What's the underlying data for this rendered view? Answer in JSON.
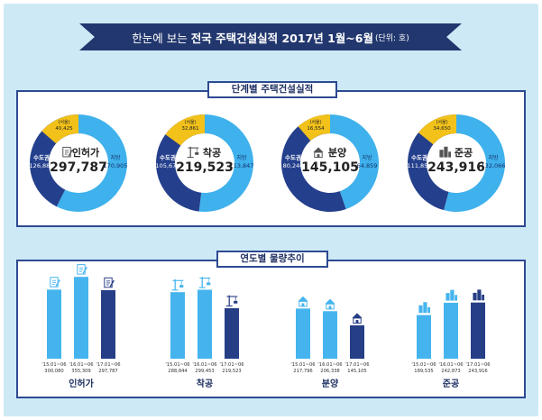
{
  "title": {
    "prefix": "한눈에 보는",
    "main": "전국 주택건설실적 2017년 1월~6월",
    "unit": "(단위: 호)"
  },
  "panels": {
    "top_label": "단계별 주택건설실적",
    "bottom_label": "연도별 물량추이"
  },
  "colors": {
    "metro": "#243f8c",
    "local": "#3fb1ec",
    "seoul": "#f2c21a",
    "bar_dark": "#263e86",
    "bar_light": "#45b4ee"
  },
  "chart_data": [
    {
      "type": "pie",
      "title": "단계별 주택건설실적",
      "donuts": [
        {
          "name": "인허가",
          "total": "297,787",
          "icon": "permit-document-icon",
          "segments": [
            {
              "name": "수도권",
              "value": 126882,
              "label": "126,882"
            },
            {
              "name": "지방",
              "value": 170905,
              "label": "170,905"
            }
          ],
          "seoul": {
            "name": "(서울)",
            "value": 40425,
            "label": "40,425"
          }
        },
        {
          "name": "착공",
          "total": "219,523",
          "icon": "crane-icon",
          "segments": [
            {
              "name": "수도권",
              "value": 105676,
              "label": "105,676"
            },
            {
              "name": "지방",
              "value": 113847,
              "label": "113,847"
            }
          ],
          "seoul": {
            "name": "(서울)",
            "value": 32861,
            "label": "32,861"
          }
        },
        {
          "name": "분양",
          "total": "145,105",
          "icon": "house-sale-icon",
          "segments": [
            {
              "name": "수도권",
              "value": 80246,
              "label": "80,246"
            },
            {
              "name": "지방",
              "value": 64859,
              "label": "64,859"
            }
          ],
          "seoul": {
            "name": "(서울)",
            "value": 16554,
            "label": "16,554"
          }
        },
        {
          "name": "준공",
          "total": "243,916",
          "icon": "buildings-icon",
          "segments": [
            {
              "name": "수도권",
              "value": 111850,
              "label": "111,850"
            },
            {
              "name": "지방",
              "value": 132066,
              "label": "132,066"
            }
          ],
          "seoul": {
            "name": "(서울)",
            "value": 34650,
            "label": "34,650"
          }
        }
      ]
    },
    {
      "type": "bar",
      "title": "연도별 물량추이",
      "groups": [
        {
          "name": "인허가",
          "icon": "permit-document-icon",
          "bars": [
            {
              "x": "'15.01~06",
              "value": 300080,
              "label": "300,080"
            },
            {
              "x": "'16.01~06",
              "value": 355309,
              "label": "355,309"
            },
            {
              "x": "'17.01~06",
              "value": 297787,
              "label": "297,787"
            }
          ]
        },
        {
          "name": "착공",
          "icon": "crane-icon",
          "bars": [
            {
              "x": "'15.01~06",
              "value": 288844,
              "label": "288,844"
            },
            {
              "x": "'16.01~06",
              "value": 299453,
              "label": "299,453"
            },
            {
              "x": "'17.01~06",
              "value": 219523,
              "label": "219,523"
            }
          ]
        },
        {
          "name": "분양",
          "icon": "house-sale-icon",
          "bars": [
            {
              "x": "'15.01~06",
              "value": 217796,
              "label": "217,796"
            },
            {
              "x": "'16.01~06",
              "value": 206338,
              "label": "206,338"
            },
            {
              "x": "'17.01~06",
              "value": 145105,
              "label": "145,105"
            }
          ]
        },
        {
          "name": "준공",
          "icon": "buildings-icon",
          "bars": [
            {
              "x": "'15.01~06",
              "value": 189535,
              "label": "189,535"
            },
            {
              "x": "'16.01~06",
              "value": 242873,
              "label": "242,873"
            },
            {
              "x": "'17.01~06",
              "value": 243916,
              "label": "243,916"
            }
          ]
        }
      ],
      "ylim": [
        0,
        360000
      ]
    }
  ]
}
